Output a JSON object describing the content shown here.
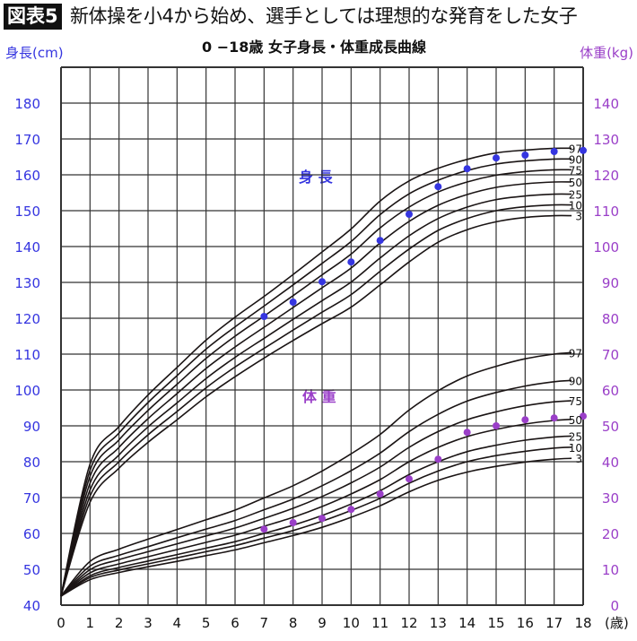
{
  "header": {
    "badge": "図表5",
    "title": "新体操を小4から始め、選手としては理想的な発育をした女子"
  },
  "chart_data": {
    "type": "line",
    "title": "0 −18歳 女子身長・体重成長曲線",
    "xlabel": "(歳)",
    "ylabel_left": "身長(cm)",
    "ylabel_right": "体重(kg)",
    "xlim": [
      0,
      18
    ],
    "ylim_left": [
      40,
      190
    ],
    "ylim_right": [
      0,
      150
    ],
    "x_ticks": [
      0,
      1,
      2,
      3,
      4,
      5,
      6,
      7,
      8,
      9,
      10,
      11,
      12,
      13,
      14,
      15,
      16,
      17,
      18
    ],
    "y_ticks_left": [
      40,
      50,
      60,
      70,
      80,
      90,
      100,
      110,
      120,
      130,
      140,
      150,
      160,
      170,
      180
    ],
    "y_ticks_right": [
      0,
      10,
      20,
      30,
      40,
      50,
      60,
      70,
      80,
      90,
      100,
      110,
      120,
      130,
      140
    ],
    "grid": true,
    "colors": {
      "height": "#3535e0",
      "weight": "#9a3fc8",
      "curves": "#1a1414",
      "grid": "#333333"
    },
    "height_label": "身 長",
    "weight_label": "体 重",
    "ages": [
      0,
      1,
      2,
      3,
      4,
      5,
      6,
      7,
      8,
      9,
      10,
      11,
      12,
      13,
      14,
      15,
      16,
      17,
      18
    ],
    "height_percentiles": [
      {
        "name": "97",
        "values": [
          42.5,
          79.3,
          89.8,
          98.6,
          106.3,
          113.9,
          120.3,
          126.1,
          132.2,
          138.5,
          144.9,
          152.7,
          158.3,
          161.8,
          164.3,
          166.1,
          166.9,
          167.4,
          167.4
        ]
      },
      {
        "name": "90",
        "values": [
          42.5,
          77.6,
          88.0,
          96.5,
          104.0,
          111.4,
          117.6,
          123.4,
          129.3,
          135.3,
          141.4,
          148.9,
          154.7,
          158.5,
          161.2,
          163.0,
          163.9,
          164.4,
          164.4
        ]
      },
      {
        "name": "75",
        "values": [
          42.5,
          75.9,
          86.1,
          94.3,
          101.6,
          108.8,
          115.0,
          120.6,
          126.3,
          132.1,
          137.9,
          145.2,
          151.0,
          155.2,
          158.0,
          159.9,
          160.9,
          161.4,
          161.4
        ]
      },
      {
        "name": "50",
        "values": [
          42.5,
          74,
          84,
          92,
          99,
          106,
          112,
          117.5,
          123,
          128.5,
          134,
          141,
          147,
          151.5,
          154.5,
          156.5,
          157.5,
          158,
          158
        ]
      },
      {
        "name": "25",
        "values": [
          42.5,
          72.1,
          81.9,
          89.7,
          96.4,
          103.2,
          109.1,
          114.4,
          119.7,
          124.9,
          130.1,
          136.8,
          143.0,
          147.8,
          151.0,
          153.1,
          154.1,
          154.6,
          154.6
        ]
      },
      {
        "name": "10",
        "values": [
          42.5,
          70.4,
          80.0,
          87.5,
          94.0,
          100.6,
          106.4,
          111.6,
          116.7,
          121.7,
          126.6,
          133.1,
          139.3,
          144.5,
          147.8,
          150.0,
          151.1,
          151.6,
          151.6
        ]
      },
      {
        "name": "3",
        "values": [
          42.5,
          68.7,
          78.2,
          85.4,
          91.7,
          98.1,
          103.7,
          108.9,
          113.8,
          118.5,
          123.1,
          129.3,
          135.7,
          141.2,
          144.7,
          146.9,
          148.1,
          148.6,
          148.6
        ]
      }
    ],
    "weight_percentiles": [
      {
        "name": "97",
        "values": [
          2.5,
          12.2,
          15.6,
          18.4,
          21.1,
          23.8,
          26.5,
          29.9,
          33.3,
          37.4,
          42.2,
          47.6,
          54.4,
          59.8,
          63.9,
          66.6,
          68.7,
          70.0,
          70.7
        ]
      },
      {
        "name": "90",
        "values": [
          2.5,
          10.9,
          13.9,
          16.3,
          18.8,
          21.2,
          23.6,
          26.6,
          29.6,
          33.3,
          37.5,
          42.4,
          48.4,
          53.2,
          56.9,
          59.3,
          61.1,
          62.3,
          62.9
        ]
      },
      {
        "name": "75",
        "values": [
          2.5,
          9.9,
          12.7,
          14.9,
          17.1,
          19.3,
          21.5,
          24.2,
          27.0,
          30.3,
          34.1,
          38.5,
          44.0,
          48.4,
          51.7,
          53.9,
          55.6,
          56.7,
          57.2
        ]
      },
      {
        "name": "50",
        "values": [
          2.5,
          9,
          11.5,
          13.5,
          15.5,
          17.5,
          19.5,
          22,
          24.5,
          27.5,
          31,
          35,
          40,
          44,
          47,
          49,
          50.5,
          51.5,
          52
        ]
      },
      {
        "name": "25",
        "values": [
          2.5,
          8.2,
          10.5,
          12.3,
          14.1,
          15.9,
          17.7,
          20.0,
          22.3,
          25.0,
          28.2,
          31.9,
          36.4,
          40.0,
          42.8,
          44.6,
          46.0,
          46.9,
          47.3
        ]
      },
      {
        "name": "10",
        "values": [
          2.5,
          7.7,
          9.8,
          11.5,
          13.2,
          14.9,
          16.6,
          18.7,
          20.8,
          23.4,
          26.4,
          29.8,
          34.0,
          37.4,
          40.0,
          41.7,
          42.9,
          43.8,
          44.2
        ]
      },
      {
        "name": "3",
        "values": [
          2.5,
          7.1,
          9.1,
          10.7,
          12.2,
          13.8,
          15.4,
          17.4,
          19.4,
          21.7,
          24.5,
          27.7,
          31.6,
          34.8,
          37.1,
          38.7,
          39.9,
          40.7,
          41.1
        ]
      }
    ],
    "height_points": {
      "x": [
        7,
        8,
        9,
        10,
        11,
        12,
        13,
        14,
        15,
        16,
        17,
        18
      ],
      "y": [
        120.5,
        124.5,
        130.2,
        135.7,
        141.7,
        149.0,
        156.7,
        161.7,
        164.7,
        165.5,
        166.5,
        166.8
      ]
    },
    "weight_points": {
      "x": [
        7,
        8,
        9,
        10,
        11,
        12,
        13,
        14,
        15,
        16,
        17,
        18
      ],
      "y": [
        21.2,
        23.0,
        24.2,
        26.7,
        31.0,
        35.2,
        40.7,
        48.2,
        50.0,
        51.7,
        52.2,
        52.7
      ]
    }
  }
}
